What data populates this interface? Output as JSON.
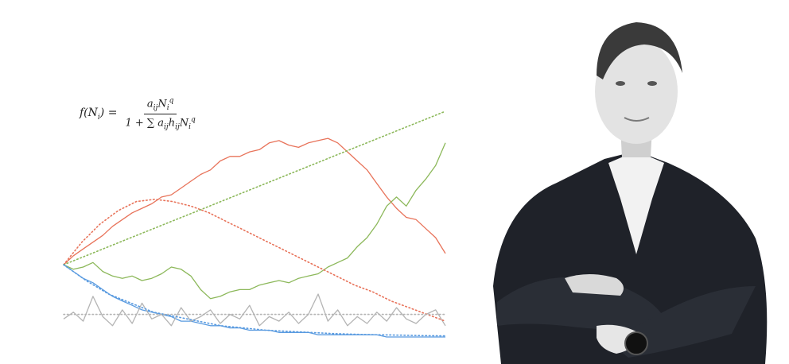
{
  "formula": {
    "lhs": "f(N",
    "lhs_sub": "i",
    "lhs_end": ") =",
    "numerator": "a",
    "numerator_sub": "ij",
    "numerator_var": "N",
    "numerator_var_sub": "i",
    "numerator_var_sup": "q",
    "denominator": "1 + ∑ a",
    "denominator_sub1": "ij",
    "denominator_h": "h",
    "denominator_sub2": "ij",
    "denominator_var": "N",
    "denominator_var_sub": "i",
    "denominator_var_sup": "q"
  },
  "colors": {
    "red": "#e8735a",
    "green": "#8cb85a",
    "blue": "#5a9be0",
    "gray": "#b4b4b4",
    "portrait_dark": "#1f2229"
  },
  "chart_data": {
    "type": "line",
    "series": [
      {
        "color": "#e8735a",
        "style": "solid",
        "values": [
          0.32,
          0.36,
          0.39,
          0.42,
          0.45,
          0.49,
          0.52,
          0.55,
          0.57,
          0.59,
          0.62,
          0.63,
          0.66,
          0.69,
          0.72,
          0.74,
          0.78,
          0.8,
          0.8,
          0.82,
          0.83,
          0.86,
          0.87,
          0.85,
          0.84,
          0.86,
          0.87,
          0.88,
          0.86,
          0.82,
          0.78,
          0.74,
          0.68,
          0.62,
          0.57,
          0.53,
          0.52,
          0.48,
          0.44,
          0.37
        ]
      },
      {
        "color": "#8cb85a",
        "style": "solid",
        "values": [
          0.32,
          0.3,
          0.31,
          0.33,
          0.29,
          0.27,
          0.26,
          0.27,
          0.25,
          0.26,
          0.28,
          0.31,
          0.3,
          0.27,
          0.21,
          0.17,
          0.18,
          0.2,
          0.21,
          0.21,
          0.23,
          0.24,
          0.25,
          0.24,
          0.26,
          0.27,
          0.28,
          0.31,
          0.33,
          0.35,
          0.4,
          0.44,
          0.5,
          0.58,
          0.62,
          0.58,
          0.65,
          0.7,
          0.76,
          0.86
        ]
      },
      {
        "color": "#5a9be0",
        "style": "solid",
        "values": [
          0.32,
          0.29,
          0.26,
          0.24,
          0.21,
          0.18,
          0.16,
          0.14,
          0.12,
          0.11,
          0.1,
          0.09,
          0.07,
          0.07,
          0.06,
          0.05,
          0.05,
          0.04,
          0.04,
          0.03,
          0.03,
          0.03,
          0.02,
          0.02,
          0.02,
          0.02,
          0.01,
          0.01,
          0.01,
          0.01,
          0.01,
          0.01,
          0.01,
          0.0,
          0.0,
          0.0,
          0.0,
          0.0,
          0.0,
          0.0
        ]
      },
      {
        "color": "#b4b4b4",
        "style": "solid",
        "values": [
          0.08,
          0.11,
          0.07,
          0.18,
          0.09,
          0.05,
          0.12,
          0.06,
          0.15,
          0.08,
          0.1,
          0.05,
          0.13,
          0.07,
          0.09,
          0.12,
          0.06,
          0.1,
          0.08,
          0.14,
          0.05,
          0.09,
          0.07,
          0.11,
          0.06,
          0.1,
          0.19,
          0.07,
          0.12,
          0.05,
          0.09,
          0.06,
          0.11,
          0.07,
          0.13,
          0.08,
          0.06,
          0.1,
          0.12,
          0.05
        ]
      },
      {
        "color": "#e8735a",
        "style": "dotted",
        "values": [
          0.32,
          0.42,
          0.5,
          0.56,
          0.6,
          0.61,
          0.6,
          0.58,
          0.55,
          0.51,
          0.47,
          0.43,
          0.39,
          0.35,
          0.31,
          0.27,
          0.23,
          0.2,
          0.16,
          0.13,
          0.1,
          0.07
        ]
      },
      {
        "color": "#8cb85a",
        "style": "dotted",
        "values": [
          0.32,
          0.36,
          0.4,
          0.44,
          0.48,
          0.52,
          0.56,
          0.6,
          0.64,
          0.68,
          0.72,
          0.76,
          0.8,
          0.84,
          0.88,
          0.92,
          0.96,
          1.0
        ]
      },
      {
        "color": "#5a9be0",
        "style": "dotted",
        "values": [
          0.32,
          0.25,
          0.19,
          0.15,
          0.11,
          0.09,
          0.07,
          0.05,
          0.04,
          0.03,
          0.025,
          0.02,
          0.015,
          0.012,
          0.01,
          0.008,
          0.006,
          0.005
        ]
      },
      {
        "color": "#b4b4b4",
        "style": "dotted",
        "values": [
          0.1,
          0.1,
          0.1,
          0.1,
          0.1,
          0.1,
          0.1,
          0.1,
          0.1,
          0.1
        ]
      }
    ]
  }
}
